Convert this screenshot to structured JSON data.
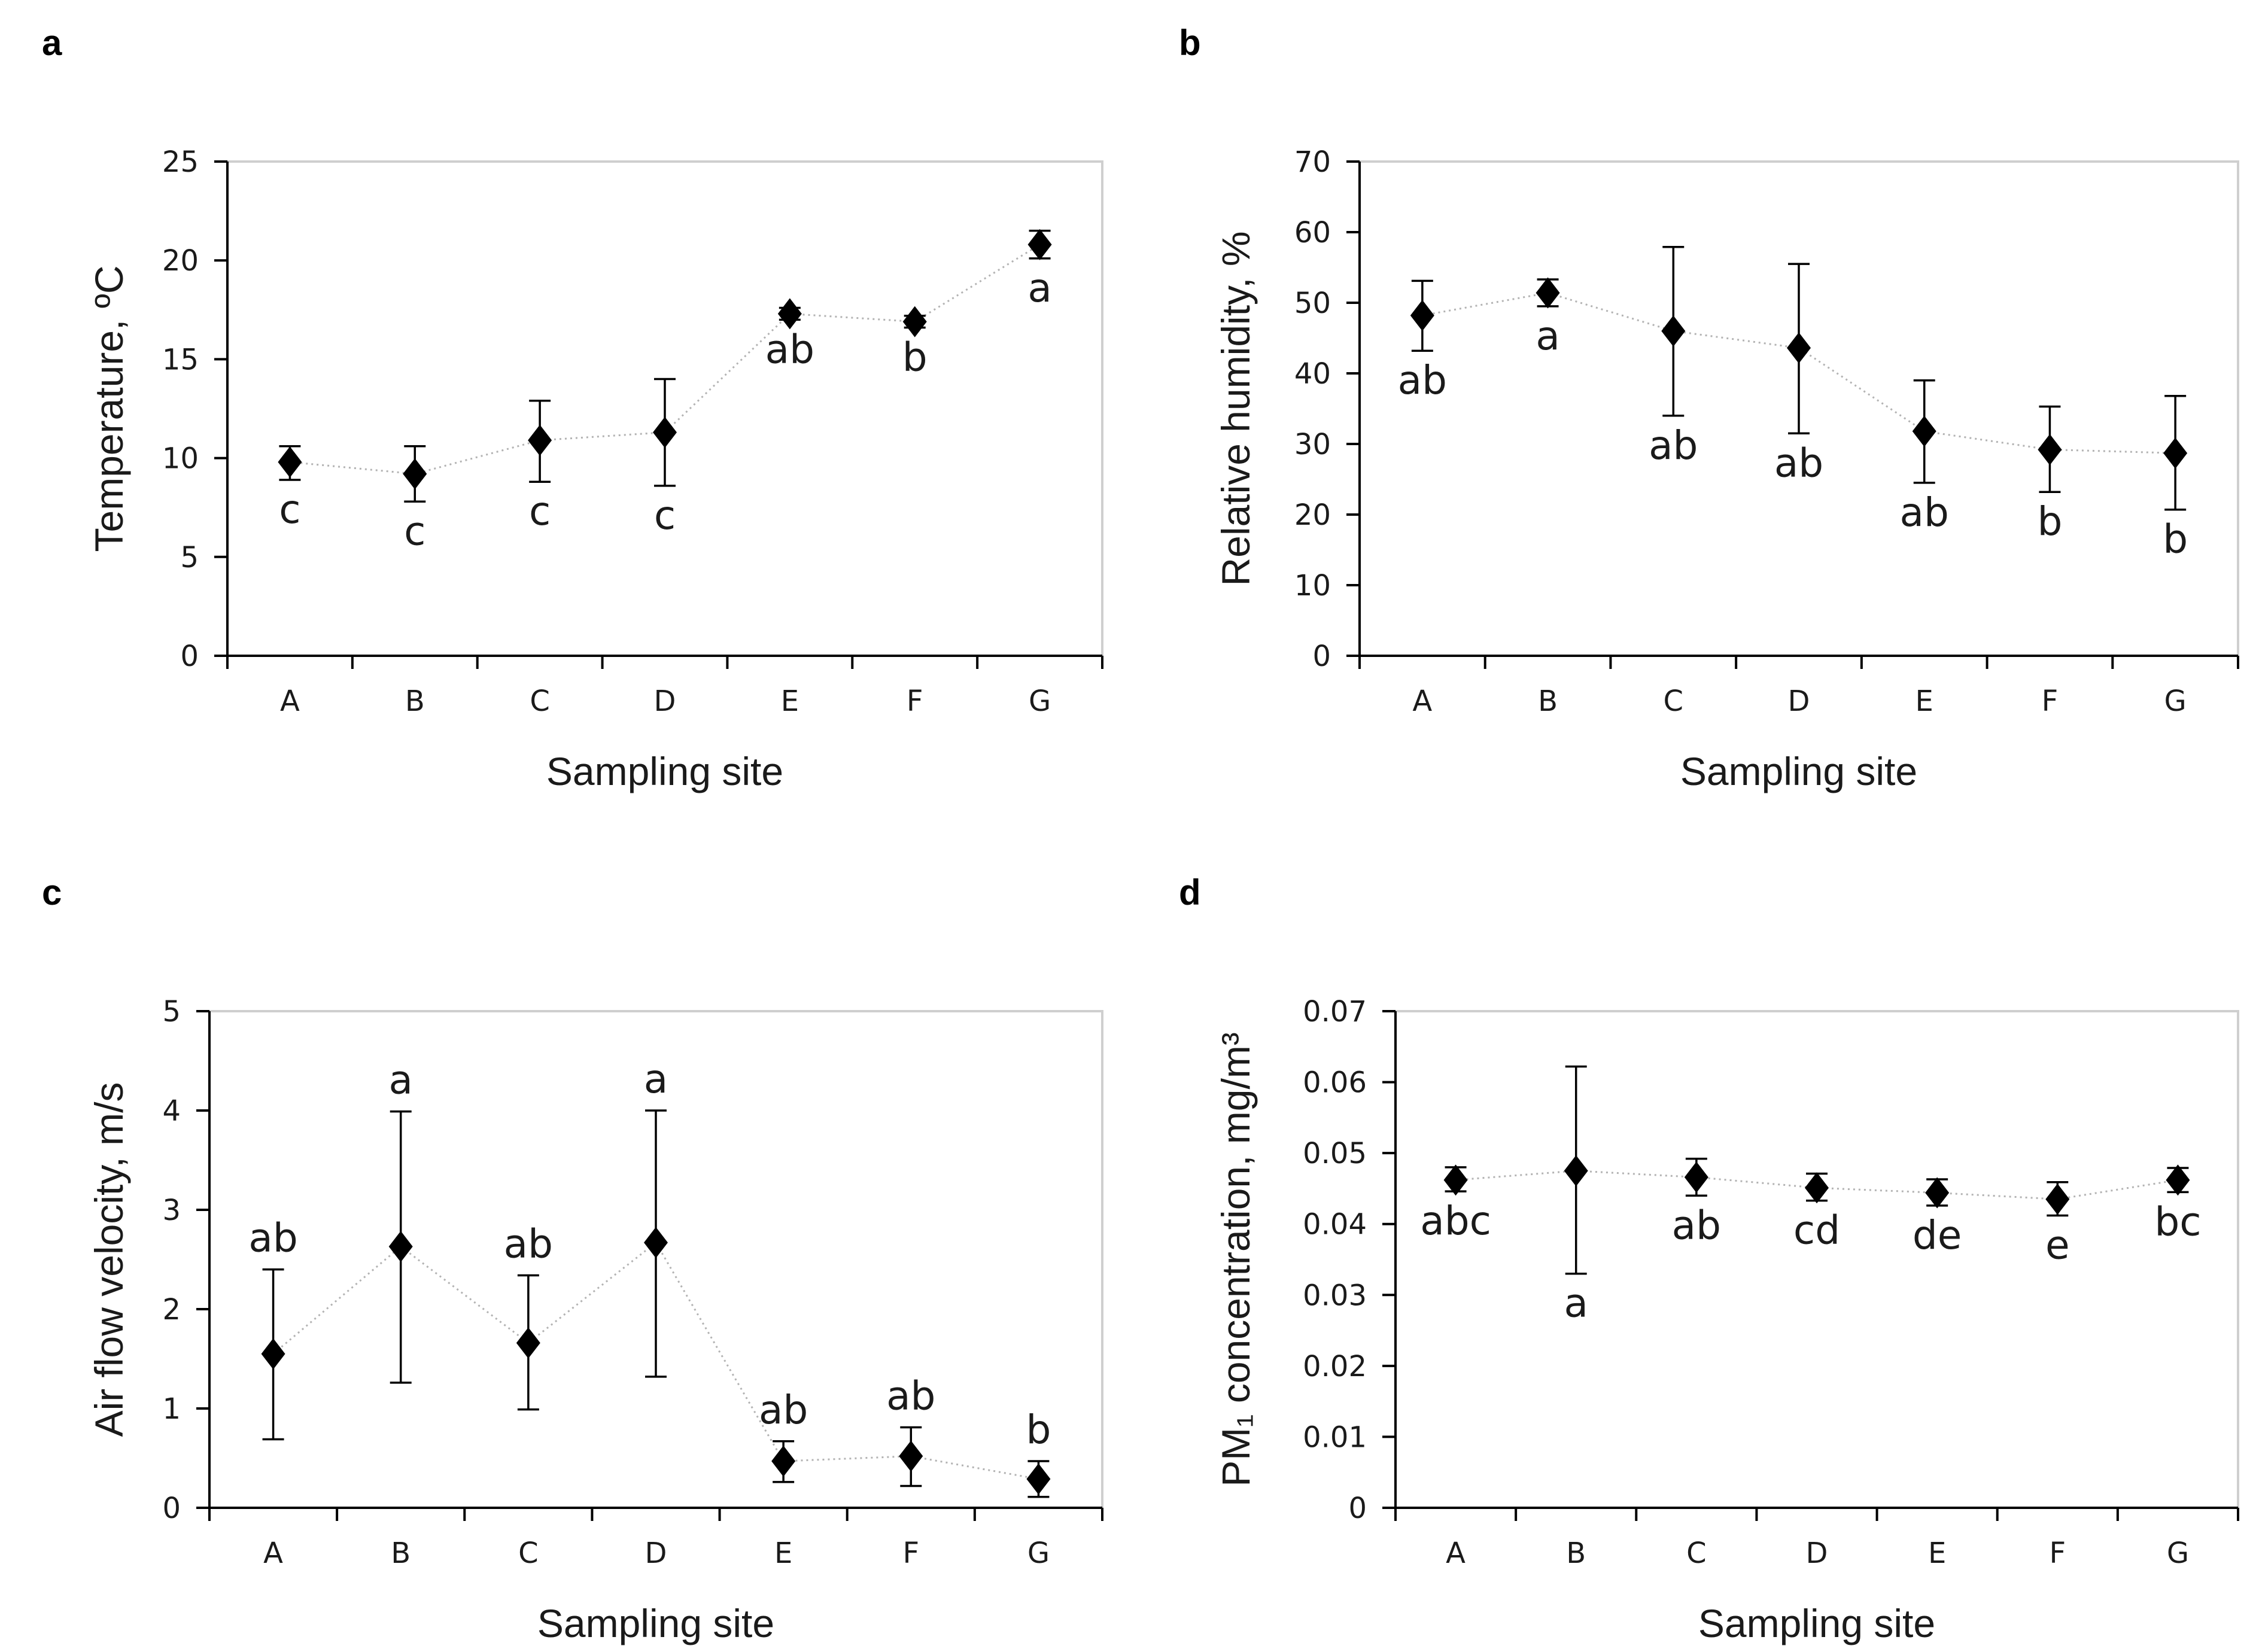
{
  "chart_data": [
    {
      "panel": "a",
      "type": "scatter",
      "categories": [
        "A",
        "B",
        "C",
        "D",
        "E",
        "F",
        "G"
      ],
      "values": [
        9.8,
        9.2,
        10.9,
        11.3,
        17.3,
        16.9,
        20.8
      ],
      "error_low": [
        8.9,
        7.8,
        8.8,
        8.6,
        17.0,
        16.6,
        20.1
      ],
      "error_high": [
        10.6,
        10.6,
        12.9,
        14.0,
        17.6,
        17.2,
        21.5
      ],
      "significance": [
        "c",
        "c",
        "c",
        "c",
        "ab",
        "b",
        "a"
      ],
      "sig_position": [
        "below",
        "below",
        "below",
        "below",
        "below",
        "below",
        "below"
      ],
      "xlabel": "Sampling site",
      "ylabel": "Temperature, ºC",
      "ylim": [
        0,
        25
      ],
      "yticks": [
        0,
        5,
        10,
        15,
        20,
        25
      ],
      "ytick_labels": [
        "0",
        "5",
        "10",
        "15",
        "20",
        "25"
      ]
    },
    {
      "panel": "b",
      "type": "scatter",
      "categories": [
        "A",
        "B",
        "C",
        "D",
        "E",
        "F",
        "G"
      ],
      "values": [
        48.2,
        51.4,
        46.0,
        43.6,
        31.8,
        29.2,
        28.7
      ],
      "error_low": [
        43.2,
        49.5,
        34.0,
        31.5,
        24.5,
        23.2,
        20.7
      ],
      "error_high": [
        53.1,
        53.3,
        57.9,
        55.5,
        39.0,
        35.3,
        36.8
      ],
      "significance": [
        "ab",
        "a",
        "ab",
        "ab",
        "ab",
        "b",
        "b"
      ],
      "sig_position": [
        "below",
        "below",
        "below",
        "below",
        "below",
        "below",
        "below"
      ],
      "xlabel": "Sampling site",
      "ylabel": "Relative humidity, %",
      "ylim": [
        0,
        70
      ],
      "yticks": [
        0,
        10,
        20,
        30,
        40,
        50,
        60,
        70
      ],
      "ytick_labels": [
        "0",
        "10",
        "20",
        "30",
        "40",
        "50",
        "60",
        "70"
      ]
    },
    {
      "panel": "c",
      "type": "scatter",
      "categories": [
        "A",
        "B",
        "C",
        "D",
        "E",
        "F",
        "G"
      ],
      "values": [
        1.55,
        2.63,
        1.66,
        2.67,
        0.47,
        0.52,
        0.29
      ],
      "error_low": [
        0.69,
        1.26,
        0.99,
        1.32,
        0.26,
        0.22,
        0.11
      ],
      "error_high": [
        2.4,
        3.99,
        2.34,
        4.0,
        0.67,
        0.81,
        0.47
      ],
      "significance": [
        "ab",
        "a",
        "ab",
        "a",
        "ab",
        "ab",
        "b"
      ],
      "sig_position": [
        "above",
        "above",
        "above",
        "above",
        "above",
        "above",
        "above"
      ],
      "xlabel": "Sampling site",
      "ylabel": "Air flow velocity, m/s",
      "ylim": [
        0,
        5
      ],
      "yticks": [
        0,
        1,
        2,
        3,
        4,
        5
      ],
      "ytick_labels": [
        "0",
        "1",
        "2",
        "3",
        "4",
        "5"
      ]
    },
    {
      "panel": "d",
      "type": "scatter",
      "categories": [
        "A",
        "B",
        "C",
        "D",
        "E",
        "F",
        "G"
      ],
      "values": [
        0.0462,
        0.0475,
        0.0466,
        0.0451,
        0.0444,
        0.0435,
        0.0462
      ],
      "error_low": [
        0.0446,
        0.033,
        0.044,
        0.0433,
        0.0426,
        0.0412,
        0.0445
      ],
      "error_high": [
        0.048,
        0.0622,
        0.0492,
        0.0471,
        0.0463,
        0.0459,
        0.0479
      ],
      "significance": [
        "abc",
        "a",
        "ab",
        "cd",
        "de",
        "e",
        "bc"
      ],
      "sig_position": [
        "below",
        "below",
        "below",
        "below",
        "below",
        "below",
        "below"
      ],
      "xlabel": "Sampling site",
      "ylabel": "PM₁ concentration, mg/m³",
      "ylim": [
        0,
        0.07
      ],
      "yticks": [
        0,
        0.01,
        0.02,
        0.03,
        0.04,
        0.05,
        0.06,
        0.07
      ],
      "ytick_labels": [
        "0",
        "0.01",
        "0.02",
        "0.03",
        "0.04",
        "0.05",
        "0.06",
        "0.07"
      ]
    }
  ]
}
